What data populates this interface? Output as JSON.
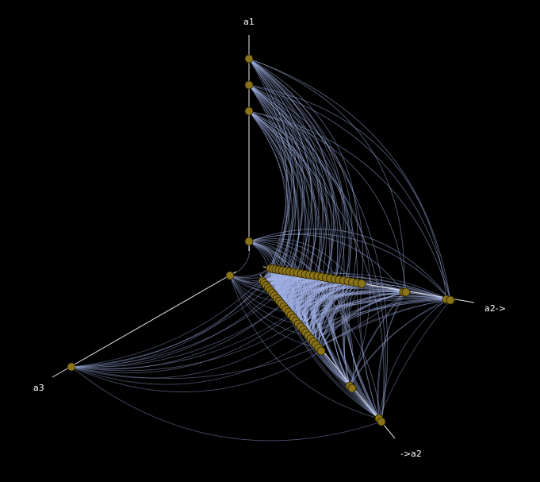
{
  "axes": {
    "a1": "a1",
    "a2_right": "a2->",
    "a2_left": "->a2",
    "a3": "a3"
  },
  "colors": {
    "background": "#000000",
    "axis": "#e8e8e8",
    "edge": "#a4b4e8",
    "node_fill": "#8b7418",
    "label": "#ffffff"
  }
}
